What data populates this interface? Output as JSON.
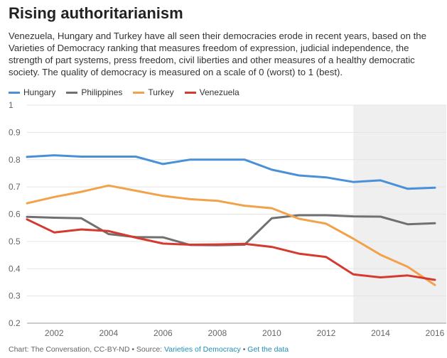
{
  "header": {
    "title": "Rising authoritarianism",
    "subtitle": "Venezuela, Hungary and Turkey have all seen their democracies erode in recent years, based on the Varieties of Democracy ranking that measures freedom of expression, judicial independence, the strength of part systems, press freedom, civil liberties and other measures of a healthy democratic society. The quality of democracy is measured on a scale of 0 (worst) to 1 (best)."
  },
  "footer": {
    "prefix": "Chart: The Conversation, CC-BY-ND • Source: ",
    "source_link": "Varieties of Democracy",
    "separator": " • ",
    "data_link": "Get the data"
  },
  "chart_data": {
    "type": "line",
    "x": [
      2001,
      2002,
      2003,
      2004,
      2005,
      2006,
      2007,
      2008,
      2009,
      2010,
      2011,
      2012,
      2013,
      2014,
      2015,
      2016
    ],
    "xticks": [
      "2002",
      "2004",
      "2006",
      "2008",
      "2010",
      "2012",
      "2014",
      "2016"
    ],
    "yticks": [
      "0.2",
      "0.3",
      "0.4",
      "0.5",
      "0.6",
      "0.7",
      "0.8",
      "0.9",
      "1"
    ],
    "xlim": [
      2001,
      2016
    ],
    "ylim": [
      0.2,
      1
    ],
    "grid": "horizontal",
    "legend_position": "top-left",
    "shaded_region": {
      "from": 2013,
      "to": 2016,
      "color": "#efefef"
    },
    "series": [
      {
        "name": "Hungary",
        "color": "#4a90d9",
        "values": [
          0.81,
          0.816,
          0.811,
          0.811,
          0.811,
          0.784,
          0.8,
          0.8,
          0.8,
          0.763,
          0.742,
          0.735,
          0.718,
          0.724,
          0.693,
          0.697
        ]
      },
      {
        "name": "Philippines",
        "color": "#707070",
        "values": [
          0.59,
          0.587,
          0.585,
          0.527,
          0.516,
          0.515,
          0.487,
          0.486,
          0.488,
          0.585,
          0.596,
          0.596,
          0.592,
          0.591,
          0.563,
          0.567
        ]
      },
      {
        "name": "Turkey",
        "color": "#f1a24b",
        "values": [
          0.64,
          0.663,
          0.682,
          0.705,
          0.686,
          0.667,
          0.655,
          0.649,
          0.631,
          0.622,
          0.583,
          0.565,
          0.51,
          0.451,
          0.407,
          0.34
        ]
      },
      {
        "name": "Venezuela",
        "color": "#d43a2f",
        "values": [
          0.581,
          0.533,
          0.544,
          0.538,
          0.514,
          0.492,
          0.488,
          0.489,
          0.491,
          0.48,
          0.455,
          0.443,
          0.379,
          0.368,
          0.375,
          0.359
        ]
      }
    ]
  }
}
